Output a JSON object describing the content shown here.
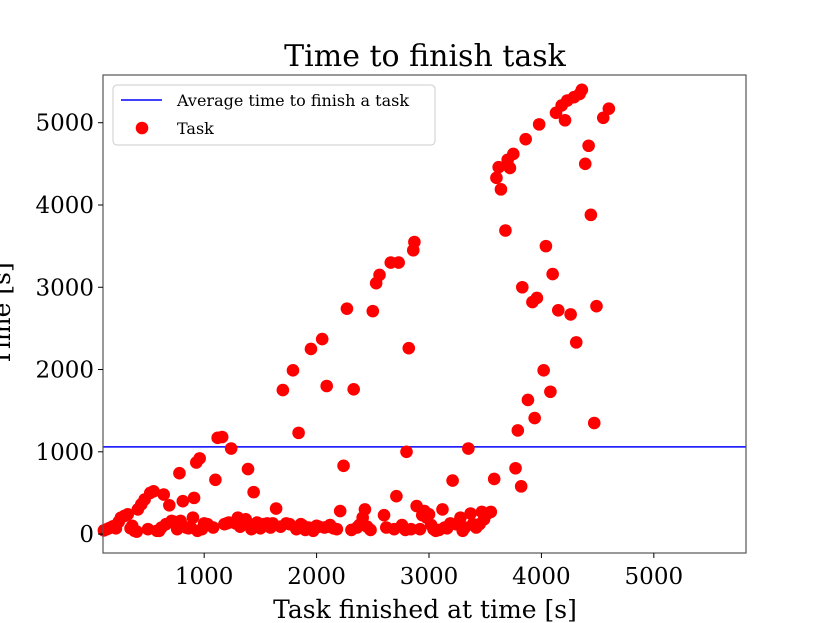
{
  "chart_data": {
    "type": "scatter",
    "title": "Time to finish task",
    "xlabel": "Task finished at time [s]",
    "ylabel": "Time [s]",
    "xlim": [
      100,
      5820
    ],
    "ylim": [
      -230,
      5580
    ],
    "xticks": [
      1000,
      2000,
      3000,
      4000,
      5000
    ],
    "yticks": [
      0,
      1000,
      2000,
      3000,
      4000,
      5000
    ],
    "grid": false,
    "legend_position": "top-left",
    "average_line": {
      "name": "Average time to finish a task",
      "y": 1060,
      "color": "#0000ff"
    },
    "series": [
      {
        "name": "Task",
        "color": "#ff0000",
        "points": [
          [
            108,
            45
          ],
          [
            135,
            60
          ],
          [
            160,
            75
          ],
          [
            190,
            95
          ],
          [
            215,
            70
          ],
          [
            240,
            150
          ],
          [
            260,
            200
          ],
          [
            290,
            220
          ],
          [
            320,
            240
          ],
          [
            345,
            70
          ],
          [
            360,
            100
          ],
          [
            380,
            40
          ],
          [
            400,
            30
          ],
          [
            410,
            300
          ],
          [
            440,
            360
          ],
          [
            470,
            420
          ],
          [
            500,
            60
          ],
          [
            520,
            500
          ],
          [
            550,
            520
          ],
          [
            580,
            40
          ],
          [
            600,
            40
          ],
          [
            620,
            80
          ],
          [
            640,
            480
          ],
          [
            660,
            120
          ],
          [
            690,
            350
          ],
          [
            710,
            160
          ],
          [
            730,
            150
          ],
          [
            760,
            60
          ],
          [
            780,
            740
          ],
          [
            790,
            160
          ],
          [
            810,
            400
          ],
          [
            840,
            80
          ],
          [
            860,
            70
          ],
          [
            880,
            80
          ],
          [
            900,
            200
          ],
          [
            910,
            440
          ],
          [
            930,
            870
          ],
          [
            940,
            40
          ],
          [
            960,
            920
          ],
          [
            980,
            60
          ],
          [
            1000,
            130
          ],
          [
            1030,
            120
          ],
          [
            1080,
            80
          ],
          [
            1100,
            660
          ],
          [
            1120,
            1170
          ],
          [
            1160,
            1180
          ],
          [
            1180,
            120
          ],
          [
            1200,
            130
          ],
          [
            1220,
            140
          ],
          [
            1240,
            1040
          ],
          [
            1280,
            130
          ],
          [
            1300,
            200
          ],
          [
            1320,
            90
          ],
          [
            1350,
            140
          ],
          [
            1370,
            180
          ],
          [
            1390,
            790
          ],
          [
            1420,
            60
          ],
          [
            1440,
            510
          ],
          [
            1470,
            140
          ],
          [
            1500,
            70
          ],
          [
            1530,
            120
          ],
          [
            1560,
            130
          ],
          [
            1590,
            80
          ],
          [
            1610,
            130
          ],
          [
            1640,
            310
          ],
          [
            1680,
            90
          ],
          [
            1700,
            1750
          ],
          [
            1730,
            130
          ],
          [
            1760,
            120
          ],
          [
            1790,
            1990
          ],
          [
            1820,
            60
          ],
          [
            1840,
            1230
          ],
          [
            1860,
            120
          ],
          [
            1880,
            100
          ],
          [
            1900,
            50
          ],
          [
            1930,
            80
          ],
          [
            1950,
            2250
          ],
          [
            1970,
            40
          ],
          [
            2000,
            100
          ],
          [
            2020,
            90
          ],
          [
            2050,
            2370
          ],
          [
            2070,
            80
          ],
          [
            2090,
            1800
          ],
          [
            2100,
            90
          ],
          [
            2120,
            110
          ],
          [
            2150,
            70
          ],
          [
            2180,
            60
          ],
          [
            2210,
            280
          ],
          [
            2240,
            830
          ],
          [
            2270,
            2740
          ],
          [
            2310,
            50
          ],
          [
            2330,
            1760
          ],
          [
            2360,
            80
          ],
          [
            2380,
            110
          ],
          [
            2410,
            200
          ],
          [
            2430,
            300
          ],
          [
            2450,
            90
          ],
          [
            2480,
            50
          ],
          [
            2500,
            2710
          ],
          [
            2530,
            3050
          ],
          [
            2560,
            3150
          ],
          [
            2600,
            230
          ],
          [
            2620,
            80
          ],
          [
            2660,
            3300
          ],
          [
            2690,
            60
          ],
          [
            2710,
            460
          ],
          [
            2730,
            3300
          ],
          [
            2760,
            110
          ],
          [
            2790,
            50
          ],
          [
            2800,
            1000
          ],
          [
            2820,
            2260
          ],
          [
            2840,
            60
          ],
          [
            2860,
            3450
          ],
          [
            2870,
            3550
          ],
          [
            2890,
            340
          ],
          [
            2920,
            60
          ],
          [
            2940,
            230
          ],
          [
            2960,
            280
          ],
          [
            2980,
            200
          ],
          [
            3000,
            240
          ],
          [
            3020,
            110
          ],
          [
            3040,
            60
          ],
          [
            3060,
            40
          ],
          [
            3090,
            50
          ],
          [
            3120,
            300
          ],
          [
            3140,
            80
          ],
          [
            3160,
            70
          ],
          [
            3190,
            130
          ],
          [
            3210,
            650
          ],
          [
            3240,
            120
          ],
          [
            3280,
            200
          ],
          [
            3300,
            40
          ],
          [
            3320,
            80
          ],
          [
            3350,
            1040
          ],
          [
            3370,
            250
          ],
          [
            3390,
            120
          ],
          [
            3420,
            80
          ],
          [
            3450,
            120
          ],
          [
            3470,
            270
          ],
          [
            3490,
            180
          ],
          [
            3520,
            250
          ],
          [
            3550,
            270
          ],
          [
            3580,
            670
          ],
          [
            3600,
            4330
          ],
          [
            3620,
            4460
          ],
          [
            3640,
            4190
          ],
          [
            3680,
            3690
          ],
          [
            3700,
            4550
          ],
          [
            3720,
            4450
          ],
          [
            3750,
            4620
          ],
          [
            3770,
            800
          ],
          [
            3790,
            1260
          ],
          [
            3820,
            580
          ],
          [
            3830,
            3000
          ],
          [
            3860,
            4800
          ],
          [
            3880,
            1630
          ],
          [
            3920,
            2820
          ],
          [
            3940,
            1410
          ],
          [
            3960,
            2870
          ],
          [
            3980,
            4980
          ],
          [
            4020,
            1990
          ],
          [
            4040,
            3500
          ],
          [
            4080,
            1730
          ],
          [
            4100,
            3160
          ],
          [
            4130,
            5120
          ],
          [
            4150,
            2720
          ],
          [
            4180,
            5210
          ],
          [
            4210,
            5030
          ],
          [
            4230,
            5270
          ],
          [
            4260,
            2670
          ],
          [
            4290,
            5310
          ],
          [
            4310,
            2330
          ],
          [
            4340,
            5350
          ],
          [
            4360,
            5400
          ],
          [
            4390,
            4500
          ],
          [
            4420,
            4720
          ],
          [
            4440,
            3880
          ],
          [
            4470,
            1350
          ],
          [
            4490,
            2770
          ],
          [
            4550,
            5060
          ],
          [
            4600,
            5170
          ]
        ]
      }
    ]
  }
}
